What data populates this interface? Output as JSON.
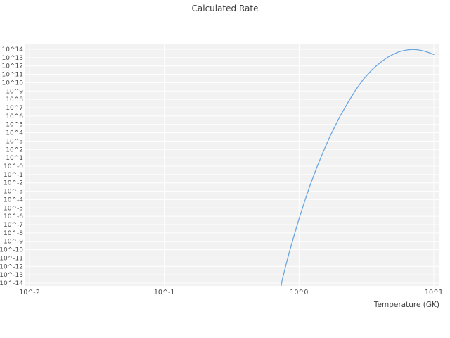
{
  "chart_data": {
    "type": "line",
    "title": "Calculated Rate",
    "xlabel": "Temperature (GK)",
    "ylabel": "",
    "x_scale": "log",
    "y_scale": "log",
    "x_range_log10": [
      -2,
      1
    ],
    "y_range_log10": [
      -14,
      14
    ],
    "x_tick_labels": [
      "10^-2",
      "10^-1",
      "10^0",
      "10^1"
    ],
    "x_tick_log10": [
      -2,
      -1,
      0,
      1
    ],
    "y_tick_labels": [
      "10^14",
      "10^13",
      "10^12",
      "10^11",
      "10^10",
      "10^9",
      "10^8",
      "10^7",
      "10^6",
      "10^5",
      "10^4",
      "10^3",
      "10^2",
      "10^1",
      "10^-0",
      "10^-1",
      "10^-2",
      "10^-3",
      "10^-4",
      "10^-5",
      "10^-6",
      "10^-7",
      "10^-8",
      "10^-9",
      "10^-10",
      "10^-11",
      "10^-12",
      "10^-13",
      "10^-14"
    ],
    "grid": {
      "background": "#f2f2f2",
      "line_color": "#ffffff"
    },
    "legend": "none",
    "series": [
      {
        "name": "calculated-rate",
        "color": "#6ba6e0",
        "x": [
          0.72,
          0.75,
          0.8,
          0.85,
          0.9,
          0.95,
          1.0,
          1.1,
          1.2,
          1.35,
          1.5,
          1.7,
          2.0,
          2.3,
          2.6,
          3.0,
          3.5,
          4.0,
          4.5,
          5.0,
          5.5,
          6.0,
          6.5,
          7.0,
          7.5,
          8.0,
          8.5,
          9.0,
          9.5,
          10.0
        ],
        "log10_y": [
          -15.2,
          -13.6,
          -11.8,
          -10.2,
          -8.8,
          -7.5,
          -6.3,
          -4.2,
          -2.4,
          -0.2,
          1.6,
          3.6,
          5.9,
          7.6,
          9.0,
          10.4,
          11.6,
          12.4,
          13.0,
          13.4,
          13.7,
          13.85,
          13.95,
          13.98,
          13.95,
          13.88,
          13.78,
          13.65,
          13.52,
          13.38
        ]
      }
    ]
  }
}
